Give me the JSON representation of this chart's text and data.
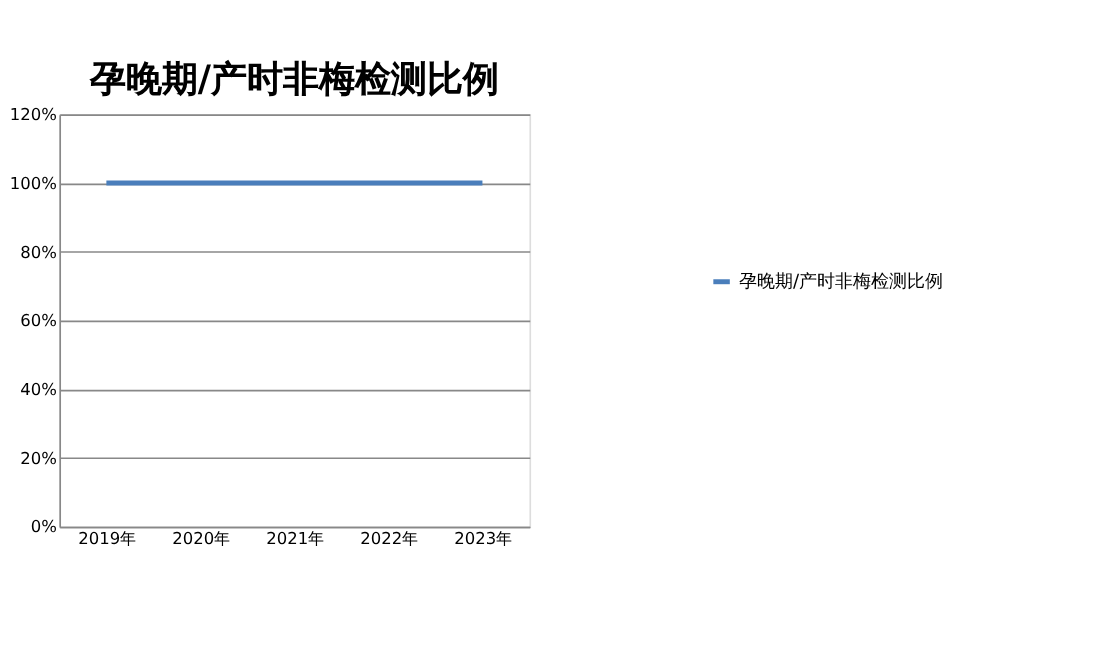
{
  "chart_data": {
    "type": "line",
    "title": "孕晚期/产时非梅检测比例",
    "categories": [
      "2019年",
      "2020年",
      "2021年",
      "2022年",
      "2023年"
    ],
    "series": [
      {
        "name": "孕晚期/产时非梅检测比例",
        "color": "#4a7ebb",
        "values": [
          100,
          100,
          100,
          100,
          100
        ]
      }
    ],
    "ylim": [
      0,
      120
    ],
    "yticks": [
      {
        "value": 0,
        "label": "0%"
      },
      {
        "value": 20,
        "label": "20%"
      },
      {
        "value": 40,
        "label": "40%"
      },
      {
        "value": 60,
        "label": "60%"
      },
      {
        "value": 80,
        "label": "80%"
      },
      {
        "value": 100,
        "label": "100%"
      },
      {
        "value": 120,
        "label": "120%"
      }
    ],
    "grid": "y",
    "legend": "right",
    "marker": "none",
    "line_style": "solid"
  }
}
